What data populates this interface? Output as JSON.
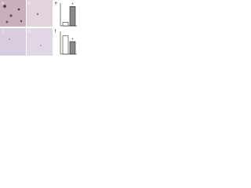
{
  "figure": {
    "panels": [
      {
        "label": "a"
      },
      {
        "label": "b"
      },
      {
        "label": "c"
      },
      {
        "label": "d"
      }
    ],
    "charts": [
      {
        "label": "e",
        "values": [
          15,
          85
        ],
        "colors": [
          "#ffffff",
          "#8a8a8a"
        ],
        "ylim": [
          0,
          100
        ],
        "annotation": "*"
      },
      {
        "label": "f",
        "values": [
          80,
          55
        ],
        "colors": [
          "#ffffff",
          "#8a8a8a"
        ],
        "ylim": [
          0,
          100
        ],
        "annotation": "*"
      }
    ]
  }
}
